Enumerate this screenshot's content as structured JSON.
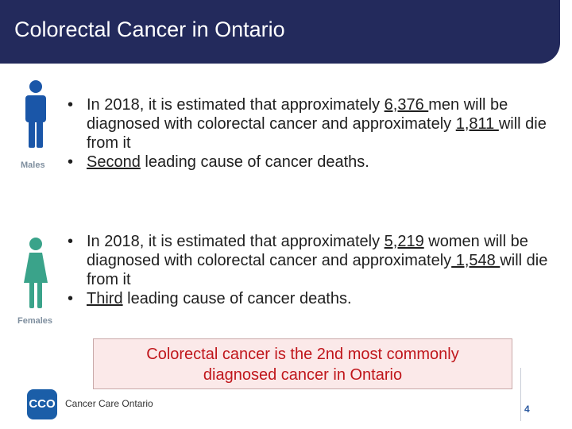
{
  "header": {
    "title": "Colorectal Cancer in Ontario"
  },
  "males": {
    "icon_label": "Males",
    "bullets": [
      {
        "prefix": "In 2018, it is estimated that approximately ",
        "num1": "6,376 ",
        "mid": "men will be diagnosed with colorectal cancer and approximately ",
        "num2": "1,811 ",
        "suffix": "will die from it"
      },
      {
        "highlight": "Second",
        "rest": " leading cause of cancer deaths."
      }
    ]
  },
  "females": {
    "icon_label": "Females",
    "bullets": [
      {
        "prefix": "In 2018, it is estimated that approximately ",
        "num1": "5,219",
        "mid": " women will be diagnosed with colorectal cancer and approximately",
        "num2": " 1,548 ",
        "suffix": "will die from it"
      },
      {
        "highlight": "Third",
        "rest": " leading cause of cancer deaths."
      }
    ]
  },
  "callout": {
    "line1": "Colorectal cancer is the 2nd most commonly",
    "line2": "diagnosed cancer in Ontario"
  },
  "footer": {
    "logo_abbr": "CCO",
    "logo_text": "Cancer Care Ontario",
    "page_number": "4"
  },
  "colors": {
    "title_bg": "#232a5c",
    "male_icon": "#1a56a8",
    "female_icon": "#3aa38a",
    "callout_text": "#c0161b",
    "callout_bg": "#fbe9e9"
  }
}
